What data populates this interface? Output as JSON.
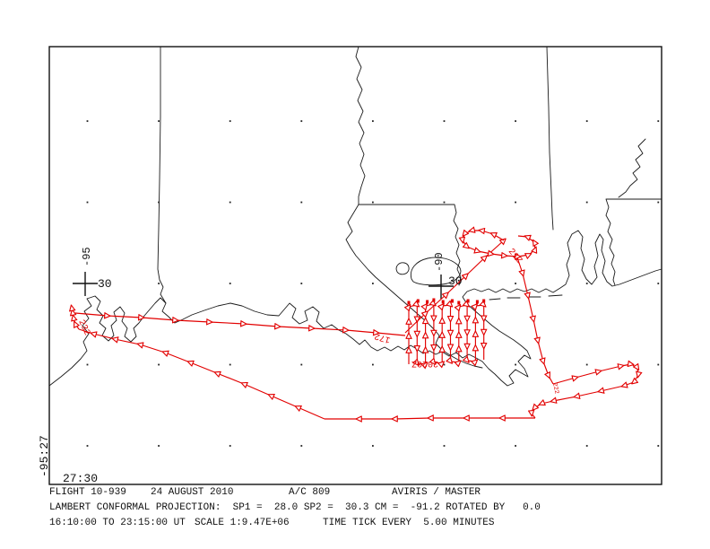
{
  "colors": {
    "track": "#e20000",
    "map_lines": "#1a1a1a",
    "background": "#ffffff"
  },
  "graticule": {
    "west_cross_lat": "30",
    "west_cross_lon": "-95",
    "east_cross_lat": "30",
    "east_cross_lon": "-90",
    "corner_lon": "-95:27",
    "corner_lat": "27:30"
  },
  "track_labels": {
    "loop_exit_time": "21Z",
    "approach_time": "172",
    "survey_end_time": "2020Z",
    "racetrack_time": "222",
    "return_time": "232"
  },
  "footer": {
    "flight": "FLIGHT 10-939",
    "date": "24 AUGUST 2010",
    "aircraft": "A/C 809",
    "sensor": "AVIRIS / MASTER",
    "projection": "LAMBERT CONFORMAL PROJECTION:  SP1 =  28.0 SP2 =  30.3 CM =  -91.2 ROTATED BY   0.0",
    "time_range": "16:10:00 TO 23:15:00 UT",
    "scale": "SCALE 1:9.47E+06",
    "time_tick": "TIME TICK EVERY  5.00 MINUTES"
  }
}
